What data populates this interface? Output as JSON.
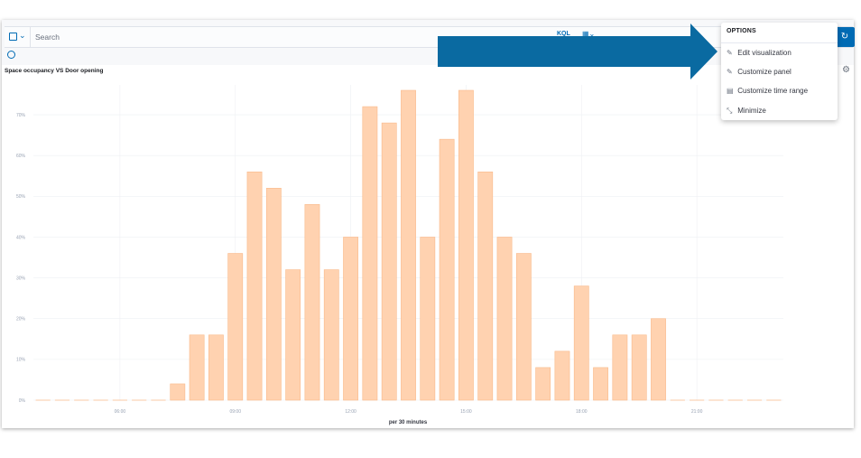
{
  "toolbar": {
    "search_placeholder": "Search",
    "query_language": "KQL"
  },
  "panel": {
    "title": "Space occupancy VS Door opening"
  },
  "options_menu": {
    "title": "OPTIONS",
    "items": [
      {
        "label": "Edit visualization",
        "icon": "pencil-icon"
      },
      {
        "label": "Customize panel",
        "icon": "pencil-icon"
      },
      {
        "label": "Customize time range",
        "icon": "calendar-icon"
      },
      {
        "label": "Minimize",
        "icon": "minimize-icon"
      }
    ]
  },
  "colors": {
    "bar_fill": "#ffd2b0",
    "bar_stroke": "#f9b98a",
    "accent": "#006bb4",
    "arrow": "#0a6aa1"
  },
  "chart_data": {
    "type": "bar",
    "xlabel": "per 30 minutes",
    "ylim": [
      0,
      76
    ],
    "y_ticks": [
      "0%",
      "10%",
      "20%",
      "30%",
      "40%",
      "50%",
      "60%",
      "70%"
    ],
    "x_ticks": [
      {
        "label": "06:00",
        "index": 4.5
      },
      {
        "label": "09:00",
        "index": 10.5
      },
      {
        "label": "12:00",
        "index": 16.5
      },
      {
        "label": "15:00",
        "index": 22.5
      },
      {
        "label": "18:00",
        "index": 28.5
      },
      {
        "label": "21:00",
        "index": 34.5
      }
    ],
    "values": [
      0,
      0,
      0,
      0,
      0,
      0,
      0,
      4,
      16,
      16,
      36,
      56,
      52,
      32,
      48,
      32,
      40,
      72,
      68,
      76,
      40,
      64,
      76,
      56,
      40,
      36,
      8,
      12,
      28,
      8,
      16,
      16,
      20,
      0,
      0,
      0,
      0,
      0,
      0
    ]
  }
}
